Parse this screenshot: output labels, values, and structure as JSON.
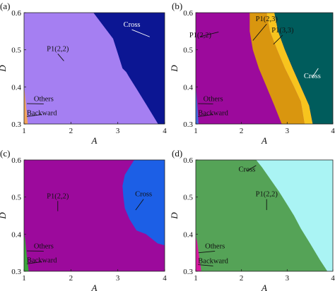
{
  "figure": {
    "panel_count": 4
  },
  "chart_data": [
    {
      "id": "a",
      "type": "area",
      "panel_label": "(a)",
      "xlabel": "A",
      "ylabel": "D",
      "xlim": [
        1,
        4
      ],
      "ylim": [
        0.3,
        0.6
      ],
      "xticks": [
        "1",
        "2",
        "3",
        "4"
      ],
      "yticks": [
        "0.3",
        "0.4",
        "0.5",
        "0.6"
      ],
      "grid": false,
      "background": "#a57ff2",
      "regions": [
        {
          "name": "P1(2,2)",
          "color": "#a57ff2",
          "boundary": [
            [
              1,
              0.3
            ],
            [
              4,
              0.3
            ],
            [
              4,
              0.6
            ],
            [
              1,
              0.6
            ]
          ]
        },
        {
          "name": "Cross",
          "color": "#0c1693",
          "boundary": [
            [
              2.48,
              0.6
            ],
            [
              4,
              0.6
            ],
            [
              4,
              0.3
            ],
            [
              3.86,
              0.3
            ],
            [
              3.62,
              0.35
            ],
            [
              3.4,
              0.395
            ],
            [
              3.25,
              0.425
            ],
            [
              3.18,
              0.44
            ],
            [
              3.1,
              0.45
            ],
            [
              3.0,
              0.49
            ],
            [
              2.9,
              0.53
            ],
            [
              2.72,
              0.56
            ],
            [
              2.6,
              0.58
            ]
          ]
        },
        {
          "name": "Others",
          "color": "#f2a45a",
          "boundary": [
            [
              1,
              0.3
            ],
            [
              1.08,
              0.3
            ],
            [
              1.05,
              0.34
            ],
            [
              1.01,
              0.39
            ],
            [
              1,
              0.4
            ]
          ]
        }
      ],
      "annotations": [
        {
          "text": "Cross",
          "x": 3.3,
          "y": 0.56,
          "tx": 3.68,
          "ty": 0.535,
          "light": true
        },
        {
          "text": "P1(2,2)",
          "x": 1.72,
          "y": 0.495,
          "tx": 1.85,
          "ty": 0.47,
          "light": false
        },
        {
          "text": "Others",
          "x": 1.42,
          "y": 0.36,
          "tx": 1.06,
          "ty": 0.355,
          "light": false
        },
        {
          "text": "Backward",
          "x": 1.38,
          "y": 0.32,
          "tx": 1.06,
          "ty": 0.32,
          "light": false
        }
      ]
    },
    {
      "id": "b",
      "type": "area",
      "panel_label": "(b)",
      "xlabel": "A",
      "ylabel": "D",
      "xlim": [
        1,
        4
      ],
      "ylim": [
        0.3,
        0.6
      ],
      "xticks": [
        "1",
        "2",
        "3",
        "4"
      ],
      "yticks": [
        "0.3",
        "0.4",
        "0.5",
        "0.6"
      ],
      "grid": false,
      "background": "#9c0a9c",
      "regions": [
        {
          "name": "P1(2,2)",
          "color": "#9c0a9c",
          "boundary": [
            [
              1,
              0.3
            ],
            [
              4,
              0.3
            ],
            [
              4,
              0.6
            ],
            [
              1,
              0.6
            ]
          ]
        },
        {
          "name": "P1(2,3)",
          "color": "#d9960f",
          "boundary": [
            [
              2.18,
              0.6
            ],
            [
              2.55,
              0.6
            ],
            [
              2.62,
              0.55
            ],
            [
              2.78,
              0.5
            ],
            [
              2.95,
              0.45
            ],
            [
              3.15,
              0.4
            ],
            [
              3.3,
              0.36
            ],
            [
              3.38,
              0.3
            ],
            [
              2.88,
              0.3
            ],
            [
              2.72,
              0.35
            ],
            [
              2.55,
              0.4
            ],
            [
              2.38,
              0.45
            ],
            [
              2.25,
              0.5
            ],
            [
              2.18,
              0.55
            ]
          ]
        },
        {
          "name": "P1(3,3)",
          "color": "#f7c41e",
          "boundary": [
            [
              2.55,
              0.6
            ],
            [
              2.72,
              0.6
            ],
            [
              2.8,
              0.55
            ],
            [
              2.95,
              0.5
            ],
            [
              3.12,
              0.45
            ],
            [
              3.3,
              0.4
            ],
            [
              3.48,
              0.35
            ],
            [
              3.56,
              0.3
            ],
            [
              3.38,
              0.3
            ],
            [
              3.3,
              0.36
            ],
            [
              3.15,
              0.4
            ],
            [
              2.95,
              0.45
            ],
            [
              2.78,
              0.5
            ],
            [
              2.62,
              0.55
            ]
          ]
        },
        {
          "name": "Cross",
          "color": "#005c5c",
          "boundary": [
            [
              2.72,
              0.6
            ],
            [
              4,
              0.6
            ],
            [
              4,
              0.3
            ],
            [
              3.56,
              0.3
            ],
            [
              3.48,
              0.35
            ],
            [
              3.3,
              0.4
            ],
            [
              3.12,
              0.45
            ],
            [
              2.95,
              0.5
            ],
            [
              2.8,
              0.55
            ]
          ]
        },
        {
          "name": "Others",
          "color": "#3f6ee0",
          "boundary": [
            [
              1,
              0.3
            ],
            [
              1.06,
              0.3
            ],
            [
              1.04,
              0.34
            ],
            [
              1.01,
              0.39
            ],
            [
              1,
              0.4
            ]
          ]
        }
      ],
      "annotations": [
        {
          "text": "P1(2,3)",
          "x": 2.55,
          "y": 0.575,
          "tx": 2.25,
          "ty": 0.525,
          "light": false
        },
        {
          "text": "P1(3,3)",
          "x": 2.9,
          "y": 0.545,
          "tx": 2.7,
          "ty": 0.515,
          "light": false
        },
        {
          "text": "P1(2,2)",
          "x": 1.1,
          "y": 0.53,
          "tx": 1.5,
          "ty": 0.548,
          "light": false
        },
        {
          "text": "Cross",
          "x": 3.55,
          "y": 0.42,
          "tx": 3.68,
          "ty": 0.45,
          "light": true
        },
        {
          "text": "Others",
          "x": 1.38,
          "y": 0.36,
          "tx": 1.05,
          "ty": 0.355,
          "light": false
        },
        {
          "text": "Backward",
          "x": 1.38,
          "y": 0.32,
          "tx": 1.05,
          "ty": 0.32,
          "light": false
        }
      ]
    },
    {
      "id": "c",
      "type": "area",
      "panel_label": "(c)",
      "xlabel": "A",
      "ylabel": "D",
      "xlim": [
        1,
        4
      ],
      "ylim": [
        0.3,
        0.6
      ],
      "xticks": [
        "1",
        "2",
        "3",
        "4"
      ],
      "yticks": [
        "0.3",
        "0.4",
        "0.5",
        "0.6"
      ],
      "grid": false,
      "background": "#9c0a9c",
      "regions": [
        {
          "name": "P1(2,2)",
          "color": "#9c0a9c",
          "boundary": [
            [
              1,
              0.3
            ],
            [
              4,
              0.3
            ],
            [
              4,
              0.6
            ],
            [
              1,
              0.6
            ]
          ]
        },
        {
          "name": "Cross",
          "color": "#1c5fe6",
          "boundary": [
            [
              3.35,
              0.6
            ],
            [
              4,
              0.6
            ],
            [
              4,
              0.37
            ],
            [
              3.85,
              0.375
            ],
            [
              3.6,
              0.4
            ],
            [
              3.4,
              0.41
            ],
            [
              3.25,
              0.44
            ],
            [
              3.15,
              0.47
            ],
            [
              3.12,
              0.5
            ],
            [
              3.1,
              0.53
            ],
            [
              3.15,
              0.56
            ],
            [
              3.25,
              0.58
            ]
          ]
        },
        {
          "name": "Others",
          "color": "#3aa63a",
          "boundary": [
            [
              1,
              0.3
            ],
            [
              1.1,
              0.3
            ],
            [
              1.06,
              0.34
            ],
            [
              1.02,
              0.39
            ],
            [
              1,
              0.4
            ]
          ]
        }
      ],
      "annotations": [
        {
          "text": "Cross",
          "x": 3.55,
          "y": 0.5,
          "tx": 3.38,
          "ty": 0.465,
          "light": false
        },
        {
          "text": "P1(2,2)",
          "x": 1.72,
          "y": 0.495,
          "tx": 1.72,
          "ty": 0.462,
          "light": false
        },
        {
          "text": "Others",
          "x": 1.42,
          "y": 0.36,
          "tx": 1.06,
          "ty": 0.355,
          "light": false
        },
        {
          "text": "Backward",
          "x": 1.38,
          "y": 0.32,
          "tx": 1.06,
          "ty": 0.32,
          "light": false
        }
      ]
    },
    {
      "id": "d",
      "type": "area",
      "panel_label": "(d)",
      "xlabel": "A",
      "ylabel": "D",
      "xlim": [
        1,
        4
      ],
      "ylim": [
        0.3,
        0.6
      ],
      "xticks": [
        "1",
        "2",
        "3",
        "4"
      ],
      "yticks": [
        "0.3",
        "0.4",
        "0.5",
        "0.6"
      ],
      "grid": false,
      "background": "#55a357",
      "regions": [
        {
          "name": "P1(2,2)",
          "color": "#55a357",
          "boundary": [
            [
              1,
              0.3
            ],
            [
              4,
              0.3
            ],
            [
              4,
              0.6
            ],
            [
              1,
              0.6
            ]
          ]
        },
        {
          "name": "Cross",
          "color": "#aaf4f4",
          "boundary": [
            [
              2.32,
              0.6
            ],
            [
              4,
              0.6
            ],
            [
              4,
              0.3
            ],
            [
              3.88,
              0.3
            ],
            [
              3.72,
              0.33
            ],
            [
              3.5,
              0.375
            ],
            [
              3.3,
              0.415
            ],
            [
              3.15,
              0.45
            ],
            [
              3.0,
              0.48
            ],
            [
              2.82,
              0.515
            ],
            [
              2.62,
              0.55
            ],
            [
              2.45,
              0.58
            ]
          ]
        },
        {
          "name": "Others",
          "color": "#d81aa0",
          "boundary": [
            [
              1,
              0.3
            ],
            [
              1.12,
              0.3
            ],
            [
              1.08,
              0.335
            ],
            [
              1.03,
              0.38
            ],
            [
              1,
              0.395
            ]
          ]
        }
      ],
      "annotations": [
        {
          "text": "Cross",
          "x": 2.12,
          "y": 0.565,
          "tx": 2.32,
          "ty": 0.585,
          "light": false
        },
        {
          "text": "P1(2,2)",
          "x": 2.55,
          "y": 0.5,
          "tx": 2.55,
          "ty": 0.465,
          "light": false
        },
        {
          "text": "Others",
          "x": 1.42,
          "y": 0.36,
          "tx": 1.06,
          "ty": 0.35,
          "light": false
        },
        {
          "text": "Backward",
          "x": 1.38,
          "y": 0.32,
          "tx": 1.05,
          "ty": 0.318,
          "light": false
        }
      ]
    }
  ]
}
